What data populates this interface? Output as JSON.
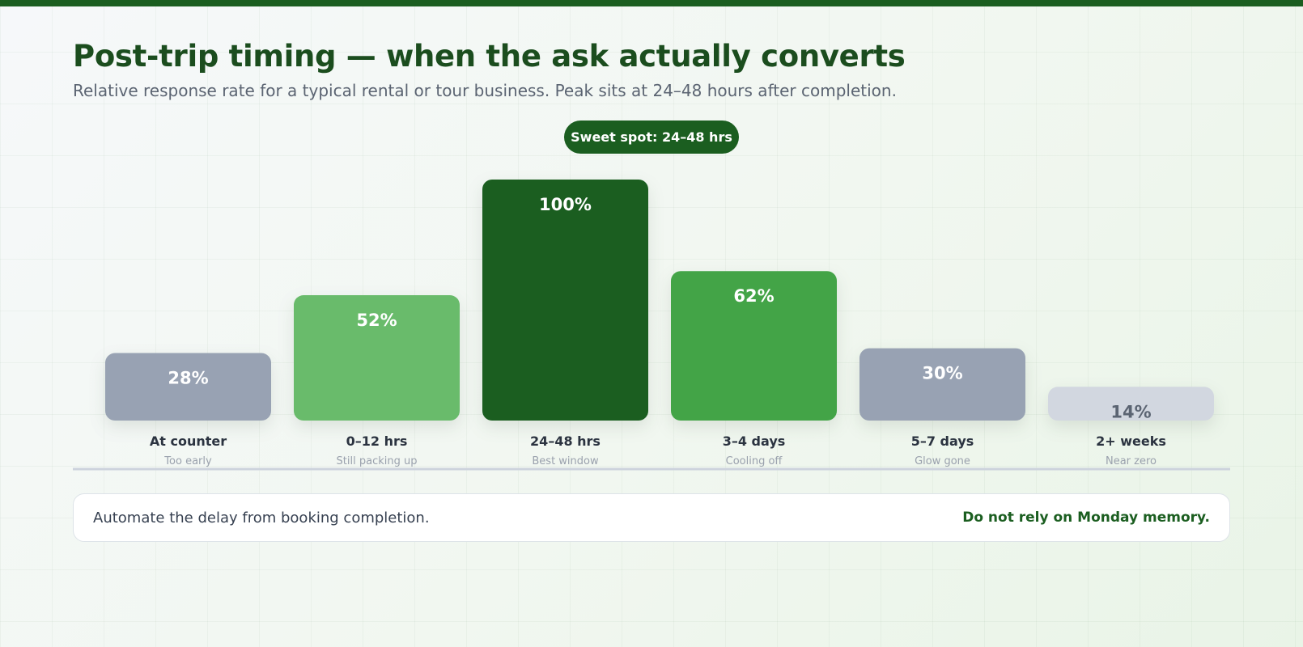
{
  "header": {
    "title": "Post-trip timing — when the ask actually converts",
    "subtitle": "Relative response rate for a typical rental or tour business. Peak sits at 24–48 hours after completion."
  },
  "badge": {
    "label": "Sweet spot: 24–48 hrs"
  },
  "chart_data": {
    "type": "bar",
    "title": "Post-trip timing — when the ask actually converts",
    "xlabel": "",
    "ylabel": "",
    "ylim": [
      0,
      100
    ],
    "grid": false,
    "categories": [
      "At counter",
      "0–12 hrs",
      "24–48 hrs",
      "3–4 days",
      "5–7 days",
      "2+ weeks"
    ],
    "sublabels": [
      "Too early",
      "Still packing up",
      "Best window",
      "Cooling off",
      "Glow gone",
      "Near zero"
    ],
    "values": [
      28,
      52,
      100,
      62,
      30,
      14
    ],
    "value_labels": [
      "28%",
      "52%",
      "100%",
      "62%",
      "30%",
      "14%"
    ],
    "colors": [
      "#98a2b3",
      "#69bb6b",
      "#1b5e20",
      "#43a447",
      "#98a2b3",
      "#d2d7e0"
    ],
    "label_colors": [
      "#ffffff",
      "#ffffff",
      "#ffffff",
      "#ffffff",
      "#ffffff",
      "#5b6472"
    ]
  },
  "footer": {
    "left": "Automate the delay from booking completion.",
    "right": "Do not rely on Monday memory."
  }
}
